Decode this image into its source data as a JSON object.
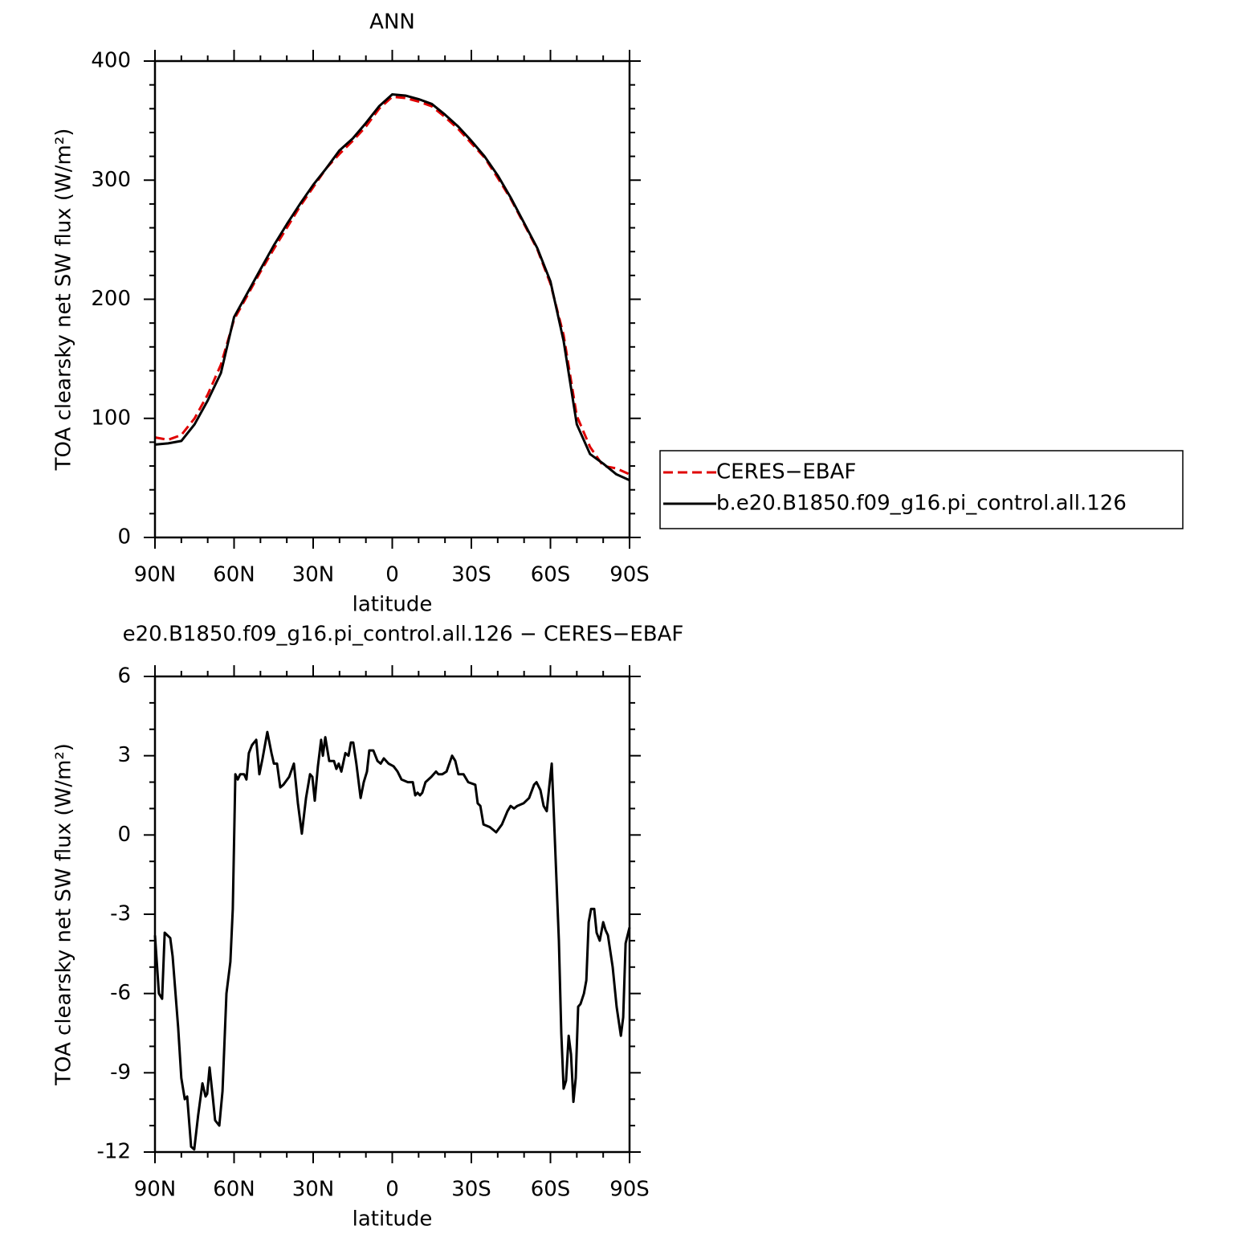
{
  "chart_data": [
    {
      "type": "line",
      "title": "ANN",
      "xlabel": "latitude",
      "ylabel": "TOA clearsky net SW flux (W/m²)",
      "x": [
        90,
        85,
        80,
        75,
        70,
        65,
        60,
        55,
        50,
        45,
        40,
        35,
        30,
        25,
        20,
        15,
        10,
        5,
        0,
        -5,
        -10,
        -15,
        -20,
        -25,
        -30,
        -35,
        -40,
        -45,
        -50,
        -55,
        -60,
        -65,
        -70,
        -75,
        -80,
        -85,
        -90
      ],
      "series": [
        {
          "name": "CERES−EBAF",
          "color": "#e00000",
          "dash": true,
          "values": [
            84,
            82,
            86,
            100,
            120,
            145,
            183,
            203,
            223,
            242,
            260,
            278,
            294,
            310,
            322,
            333,
            345,
            360,
            370,
            369,
            366,
            362,
            353,
            343,
            331,
            319,
            302,
            284,
            263,
            242,
            213,
            170,
            102,
            76,
            60,
            58,
            53
          ]
        },
        {
          "name": "b.e20.B1850.f09_g16.pi_control.all.126",
          "color": "#000000",
          "dash": false,
          "values": [
            78,
            79,
            81,
            95,
            115,
            138,
            185,
            205,
            225,
            245,
            263,
            280,
            296,
            310,
            325,
            335,
            348,
            362,
            372,
            371,
            368,
            364,
            355,
            345,
            333,
            320,
            304,
            285,
            264,
            243,
            215,
            165,
            95,
            70,
            62,
            53,
            48
          ]
        }
      ],
      "xlim": [
        90,
        -90
      ],
      "ylim": [
        0,
        400
      ],
      "xticks": [
        {
          "value": 90,
          "label": "90N"
        },
        {
          "value": 60,
          "label": "60N"
        },
        {
          "value": 30,
          "label": "30N"
        },
        0,
        {
          "value": -30,
          "label": "30S"
        },
        {
          "value": -60,
          "label": "60S"
        },
        {
          "value": -90,
          "label": "90S"
        }
      ],
      "yticks": [
        0,
        100,
        200,
        300,
        400
      ],
      "xminorticks": [
        80,
        70,
        50,
        40,
        20,
        10,
        -10,
        -20,
        -40,
        -50,
        -70,
        -80
      ],
      "yminorticks": [
        20,
        40,
        60,
        80,
        120,
        140,
        160,
        180,
        220,
        240,
        260,
        280,
        320,
        340,
        360,
        380
      ],
      "legend": "right"
    },
    {
      "type": "line",
      "title": "e20.B1850.f09_g16.pi_control.all.126 − CERES−EBAF",
      "xlabel": "latitude",
      "ylabel": "TOA clearsky net SW flux (W/m²)",
      "x": [
        90,
        88.5,
        87.3,
        86.3,
        84.2,
        83.3,
        81.2,
        80.0,
        78.7,
        77.8,
        76.3,
        75.1,
        73.6,
        72.0,
        70.8,
        70.2,
        69.3,
        68.1,
        67.2,
        65.6,
        64.4,
        62.9,
        61.4,
        60.5,
        59.5,
        58.6,
        57.7,
        56.2,
        55.3,
        54.4,
        53.2,
        51.6,
        50.4,
        49.2,
        47.4,
        45.8,
        44.9,
        43.7,
        42.5,
        41.3,
        39.1,
        37.3,
        35.8,
        34.3,
        32.7,
        31.2,
        30.3,
        29.4,
        28.2,
        27.0,
        26.3,
        25.4,
        23.9,
        22.1,
        21.2,
        20.3,
        19.3,
        17.8,
        16.6,
        15.7,
        14.8,
        13.6,
        12.0,
        10.8,
        9.6,
        8.7,
        7.2,
        5.6,
        4.4,
        3.2,
        1.4,
        -0.5,
        -2.0,
        -3.5,
        -5.9,
        -7.8,
        -8.7,
        -9.6,
        -10.5,
        -11.4,
        -12.6,
        -14.8,
        -16.6,
        -17.5,
        -19.0,
        -20.6,
        -22.7,
        -23.9,
        -25.1,
        -27.0,
        -28.8,
        -31.5,
        -32.4,
        -33.4,
        -34.6,
        -37.0,
        -39.4,
        -41.6,
        -43.7,
        -44.9,
        -46.2,
        -47.4,
        -49.8,
        -51.9,
        -53.8,
        -54.7,
        -56.2,
        -57.4,
        -58.6,
        -59.5,
        -60.5,
        -61.4,
        -63.2,
        -64.1,
        -65.0,
        -65.9,
        -66.9,
        -67.8,
        -68.7,
        -69.6,
        -70.5,
        -71.4,
        -72.7,
        -73.6,
        -74.5,
        -75.4,
        -76.6,
        -77.5,
        -78.7,
        -80.0,
        -80.9,
        -81.8,
        -83.6,
        -85.1,
        -86.7,
        -87.6,
        -88.5,
        -90
      ],
      "series": [
        {
          "color": "#000000",
          "dash": false,
          "values": [
            -3.8,
            -6.0,
            -6.2,
            -3.7,
            -3.9,
            -4.6,
            -7.3,
            -9.2,
            -10.0,
            -9.9,
            -11.8,
            -11.9,
            -10.6,
            -9.4,
            -9.9,
            -9.8,
            -8.8,
            -9.9,
            -10.8,
            -11.0,
            -9.7,
            -6.0,
            -4.8,
            -2.8,
            2.3,
            2.1,
            2.3,
            2.3,
            2.1,
            3.1,
            3.4,
            3.6,
            2.3,
            2.9,
            3.9,
            3.1,
            2.7,
            2.7,
            1.8,
            1.9,
            2.2,
            2.7,
            1.2,
            0.05,
            1.4,
            2.3,
            2.2,
            1.3,
            2.6,
            3.6,
            3.0,
            3.7,
            2.8,
            2.8,
            2.5,
            2.7,
            2.4,
            3.1,
            3.0,
            3.5,
            3.5,
            2.7,
            1.4,
            2.0,
            2.4,
            3.2,
            3.2,
            2.8,
            2.7,
            2.9,
            2.7,
            2.6,
            2.4,
            2.1,
            2.0,
            2.0,
            1.5,
            1.6,
            1.5,
            1.6,
            2.0,
            2.2,
            2.4,
            2.3,
            2.3,
            2.4,
            3.0,
            2.8,
            2.3,
            2.3,
            2.0,
            1.9,
            1.2,
            1.1,
            0.4,
            0.3,
            0.1,
            0.4,
            0.9,
            1.1,
            1.0,
            1.1,
            1.2,
            1.4,
            1.9,
            2.0,
            1.7,
            1.1,
            0.9,
            1.8,
            2.7,
            0.5,
            -4.0,
            -7.5,
            -9.6,
            -9.3,
            -7.6,
            -8.3,
            -10.1,
            -9.2,
            -6.5,
            -6.4,
            -6.0,
            -5.5,
            -3.3,
            -2.8,
            -2.8,
            -3.7,
            -4.0,
            -3.3,
            -3.6,
            -3.8,
            -5.0,
            -6.5,
            -7.6,
            -6.9,
            -4.1,
            -3.5
          ]
        }
      ],
      "xlim": [
        90,
        -90
      ],
      "ylim": [
        -12,
        6
      ],
      "xticks": [
        {
          "value": 90,
          "label": "90N"
        },
        {
          "value": 60,
          "label": "60N"
        },
        {
          "value": 30,
          "label": "30N"
        },
        0,
        {
          "value": -30,
          "label": "30S"
        },
        {
          "value": -60,
          "label": "60S"
        },
        {
          "value": -90,
          "label": "90S"
        }
      ],
      "yticks": [
        -12,
        -9,
        -6,
        -3,
        0,
        3,
        6
      ],
      "xminorticks": [
        80,
        70,
        50,
        40,
        20,
        10,
        -10,
        -20,
        -40,
        -50,
        -70,
        -80
      ],
      "yminorticks": [
        -11,
        -10,
        -8,
        -7,
        -5,
        -4,
        -2,
        -1,
        1,
        2,
        4,
        5
      ]
    }
  ]
}
